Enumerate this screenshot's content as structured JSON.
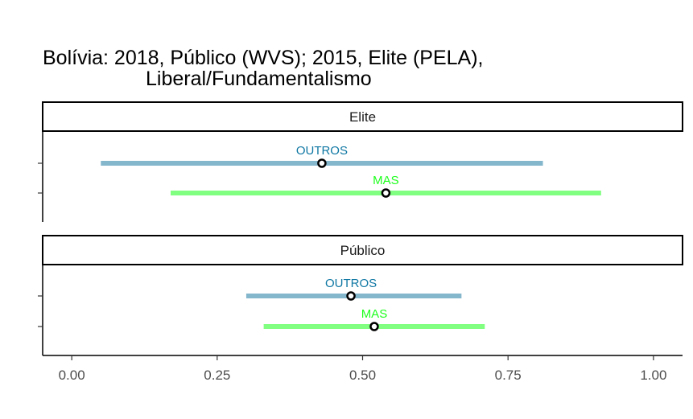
{
  "colors": {
    "outros_line": "#84B6CC",
    "outros_label": "#0E77A3",
    "mas_line": "#80FF80",
    "mas_label": "#1EFF1E",
    "axis": "#000000",
    "tick_label": "#4d4d4d"
  },
  "chart_data": {
    "type": "scatter",
    "title_lines": [
      "Bolívia: 2018, Público (WVS); 2015, Elite (PELA),",
      "Liberal/Fundamentalismo"
    ],
    "xlabel": "",
    "ylabel": "",
    "xlim": [
      -0.05,
      1.05
    ],
    "x_ticks": [
      0,
      0.25,
      0.5,
      0.75,
      1
    ],
    "x_tick_labels": [
      "0.00",
      "0.25",
      "0.50",
      "0.75",
      "1.00"
    ],
    "grid": false,
    "legend": "none",
    "panels": [
      {
        "strip": "Elite",
        "series": [
          {
            "name": "OUTROS",
            "estimate": 0.43,
            "low": 0.05,
            "high": 0.81
          },
          {
            "name": "MAS",
            "estimate": 0.54,
            "low": 0.17,
            "high": 0.91
          }
        ]
      },
      {
        "strip": "Público",
        "series": [
          {
            "name": "OUTROS",
            "estimate": 0.48,
            "low": 0.3,
            "high": 0.67
          },
          {
            "name": "MAS",
            "estimate": 0.52,
            "low": 0.33,
            "high": 0.71
          }
        ]
      }
    ]
  }
}
